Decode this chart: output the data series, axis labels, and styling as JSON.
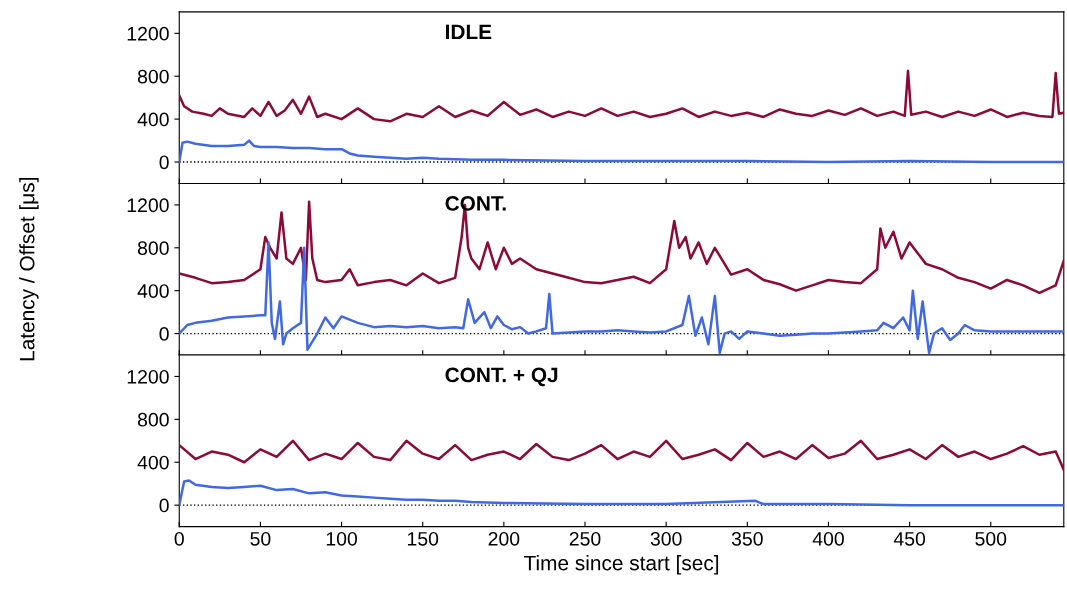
{
  "chart_data": [
    {
      "type": "line",
      "title": "IDLE",
      "ylabel": "Latency / Offset [μs]",
      "xlim": [
        0,
        545
      ],
      "xticks": [
        0,
        50,
        100,
        150,
        200,
        250,
        300,
        350,
        400,
        450,
        500
      ],
      "ylim": [
        -200,
        1400
      ],
      "yticks": [
        0,
        400,
        800,
        1200
      ],
      "tick_labels": "y",
      "grid": false,
      "ref_lines": [
        {
          "axis": "y",
          "value": 0,
          "color": "#000000",
          "line_style": "dotted"
        }
      ],
      "series": [
        {
          "color": "#8b0a3a",
          "x": [
            0,
            3,
            8,
            15,
            20,
            25,
            30,
            40,
            45,
            50,
            55,
            60,
            65,
            70,
            75,
            80,
            85,
            90,
            100,
            110,
            120,
            130,
            140,
            150,
            160,
            170,
            180,
            190,
            200,
            210,
            220,
            230,
            240,
            250,
            260,
            270,
            280,
            290,
            300,
            310,
            320,
            330,
            340,
            350,
            360,
            370,
            380,
            390,
            400,
            410,
            420,
            430,
            440,
            447,
            449,
            451,
            460,
            470,
            480,
            490,
            500,
            510,
            520,
            530,
            538,
            540,
            542,
            545
          ],
          "values": [
            620,
            520,
            470,
            450,
            430,
            500,
            450,
            420,
            500,
            430,
            560,
            430,
            480,
            580,
            450,
            610,
            420,
            450,
            400,
            500,
            400,
            380,
            450,
            420,
            520,
            420,
            480,
            430,
            560,
            440,
            490,
            420,
            470,
            430,
            500,
            430,
            470,
            420,
            450,
            500,
            420,
            470,
            430,
            460,
            420,
            490,
            450,
            430,
            480,
            440,
            500,
            430,
            470,
            430,
            850,
            440,
            470,
            420,
            470,
            430,
            490,
            420,
            460,
            430,
            420,
            830,
            450,
            460
          ]
        },
        {
          "color": "#4169e1",
          "x": [
            0,
            2,
            5,
            10,
            20,
            30,
            40,
            43,
            46,
            50,
            60,
            70,
            80,
            90,
            100,
            105,
            110,
            120,
            130,
            140,
            150,
            160,
            180,
            200,
            250,
            300,
            350,
            400,
            450,
            500,
            545
          ],
          "values": [
            0,
            180,
            190,
            170,
            150,
            150,
            160,
            200,
            150,
            140,
            140,
            130,
            130,
            120,
            120,
            80,
            60,
            50,
            40,
            30,
            40,
            30,
            20,
            20,
            10,
            10,
            10,
            0,
            10,
            0,
            0
          ]
        }
      ]
    },
    {
      "type": "line",
      "title": "CONT.",
      "xlim": [
        0,
        545
      ],
      "xticks": [
        0,
        50,
        100,
        150,
        200,
        250,
        300,
        350,
        400,
        450,
        500
      ],
      "ylim": [
        -200,
        1400
      ],
      "yticks": [
        0,
        400,
        800,
        1200
      ],
      "tick_labels": "y",
      "grid": false,
      "ref_lines": [
        {
          "axis": "y",
          "value": 0,
          "color": "#000000",
          "line_style": "dotted"
        }
      ],
      "series": [
        {
          "color": "#8b0a3a",
          "x": [
            0,
            10,
            20,
            30,
            40,
            50,
            53,
            56,
            60,
            63,
            66,
            70,
            75,
            78,
            80,
            82,
            85,
            90,
            100,
            105,
            110,
            120,
            130,
            140,
            150,
            160,
            170,
            174,
            176,
            178,
            180,
            185,
            190,
            195,
            200,
            205,
            210,
            220,
            230,
            240,
            250,
            260,
            270,
            280,
            290,
            300,
            305,
            308,
            312,
            315,
            320,
            325,
            330,
            340,
            350,
            360,
            370,
            380,
            390,
            400,
            410,
            420,
            430,
            432,
            435,
            440,
            445,
            450,
            455,
            460,
            470,
            480,
            490,
            500,
            510,
            520,
            530,
            540,
            545
          ],
          "values": [
            560,
            520,
            470,
            480,
            500,
            600,
            900,
            800,
            700,
            1130,
            700,
            650,
            800,
            500,
            1230,
            700,
            500,
            480,
            500,
            600,
            450,
            480,
            500,
            450,
            560,
            470,
            520,
            900,
            1200,
            800,
            700,
            600,
            850,
            600,
            800,
            650,
            700,
            600,
            560,
            520,
            480,
            470,
            500,
            530,
            470,
            600,
            1050,
            800,
            900,
            700,
            850,
            650,
            800,
            550,
            600,
            500,
            460,
            400,
            450,
            500,
            480,
            470,
            600,
            980,
            800,
            950,
            700,
            850,
            750,
            650,
            600,
            520,
            480,
            420,
            500,
            450,
            380,
            450,
            680
          ]
        },
        {
          "color": "#4169e1",
          "x": [
            0,
            5,
            10,
            20,
            30,
            40,
            50,
            53,
            55,
            57,
            59,
            62,
            64,
            66,
            70,
            75,
            77,
            79,
            85,
            90,
            95,
            100,
            110,
            120,
            130,
            140,
            150,
            160,
            170,
            175,
            178,
            182,
            188,
            192,
            196,
            200,
            205,
            210,
            215,
            220,
            226,
            228,
            230,
            240,
            250,
            260,
            270,
            280,
            290,
            300,
            310,
            314,
            318,
            322,
            326,
            330,
            333,
            336,
            340,
            345,
            350,
            360,
            370,
            380,
            390,
            400,
            410,
            420,
            430,
            434,
            440,
            446,
            450,
            452,
            455,
            458,
            462,
            465,
            470,
            475,
            480,
            484,
            490,
            500,
            520,
            545
          ],
          "values": [
            0,
            80,
            100,
            120,
            150,
            160,
            170,
            170,
            850,
            100,
            -50,
            300,
            -100,
            0,
            50,
            100,
            800,
            -150,
            0,
            150,
            50,
            160,
            100,
            60,
            70,
            60,
            70,
            50,
            60,
            50,
            320,
            100,
            200,
            50,
            160,
            80,
            40,
            60,
            0,
            20,
            50,
            370,
            0,
            10,
            20,
            20,
            30,
            20,
            10,
            20,
            80,
            350,
            -20,
            150,
            -100,
            350,
            -180,
            0,
            20,
            -50,
            20,
            0,
            -20,
            -10,
            0,
            0,
            10,
            20,
            30,
            100,
            50,
            150,
            30,
            400,
            -50,
            300,
            -180,
            0,
            50,
            -60,
            0,
            80,
            30,
            20,
            20,
            20
          ]
        }
      ]
    },
    {
      "type": "line",
      "title": "CONT. + QJ",
      "xlabel": "Time since start [sec]",
      "xlim": [
        0,
        545
      ],
      "xticks": [
        0,
        50,
        100,
        150,
        200,
        250,
        300,
        350,
        400,
        450,
        500
      ],
      "ylim": [
        -200,
        1400
      ],
      "yticks": [
        0,
        400,
        800,
        1200
      ],
      "grid": false,
      "ref_lines": [
        {
          "axis": "y",
          "value": 0,
          "color": "#000000",
          "line_style": "dotted"
        }
      ],
      "series": [
        {
          "color": "#8b0a3a",
          "x": [
            0,
            10,
            20,
            30,
            40,
            50,
            60,
            70,
            80,
            90,
            100,
            110,
            120,
            130,
            140,
            150,
            160,
            170,
            180,
            190,
            200,
            210,
            220,
            230,
            240,
            250,
            260,
            270,
            280,
            290,
            300,
            310,
            320,
            330,
            340,
            350,
            360,
            370,
            380,
            390,
            400,
            410,
            420,
            430,
            440,
            450,
            460,
            470,
            480,
            490,
            500,
            510,
            520,
            530,
            540,
            545
          ],
          "values": [
            560,
            430,
            500,
            470,
            400,
            520,
            450,
            600,
            420,
            480,
            430,
            580,
            450,
            420,
            600,
            480,
            430,
            560,
            420,
            470,
            500,
            430,
            570,
            450,
            420,
            480,
            560,
            430,
            500,
            450,
            600,
            430,
            470,
            520,
            420,
            580,
            450,
            500,
            430,
            560,
            440,
            480,
            600,
            430,
            470,
            520,
            430,
            560,
            450,
            500,
            430,
            480,
            550,
            470,
            500,
            330
          ]
        },
        {
          "color": "#4169e1",
          "x": [
            0,
            3,
            6,
            10,
            20,
            30,
            40,
            50,
            60,
            70,
            80,
            90,
            100,
            110,
            120,
            130,
            140,
            150,
            160,
            170,
            180,
            200,
            250,
            300,
            355,
            360,
            400,
            450,
            500,
            545
          ],
          "values": [
            0,
            220,
            230,
            190,
            170,
            160,
            170,
            180,
            140,
            150,
            110,
            120,
            90,
            80,
            70,
            60,
            50,
            50,
            40,
            40,
            30,
            20,
            10,
            10,
            40,
            10,
            10,
            0,
            0,
            0
          ]
        }
      ]
    }
  ]
}
